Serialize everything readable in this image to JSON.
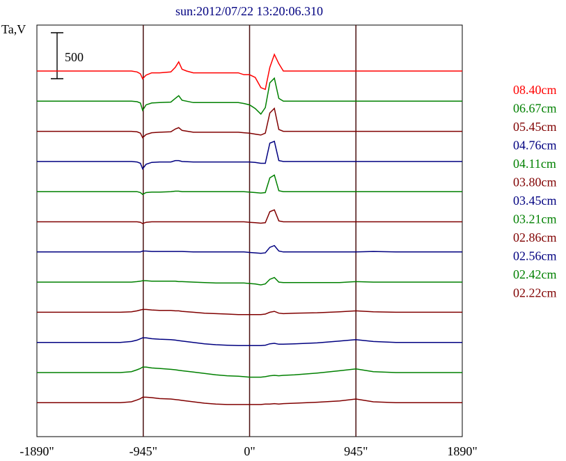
{
  "chart_data": {
    "type": "line",
    "title": "sun:2012/07/22 13:20:06.310",
    "ylabel": "Ta,V",
    "scale_bar_label": "500",
    "x_tick_labels": [
      "-1890\"",
      "-945\"",
      "0\"",
      "945\"",
      "1890\""
    ],
    "x_ticks": [
      -1890,
      -945,
      0,
      945,
      1890
    ],
    "xlim": [
      -1890,
      1890
    ],
    "vertical_lines": [
      -945,
      0,
      945
    ],
    "scale_bar_value": 500,
    "series": [
      {
        "name": "08.40cm",
        "color": "#ff0000",
        "offset": 0,
        "x": [
          -1890,
          -1150,
          -1050,
          -1000,
          -970,
          -950,
          -920,
          -870,
          -800,
          -700,
          -660,
          -630,
          -600,
          -560,
          -500,
          -400,
          -300,
          -200,
          -100,
          -50,
          0,
          50,
          100,
          140,
          180,
          220,
          260,
          300,
          400,
          600,
          800,
          945,
          1100,
          1300,
          1500,
          1700,
          1890
        ],
        "y": [
          0,
          0,
          0,
          -10,
          -30,
          -85,
          -45,
          -20,
          -20,
          -10,
          40,
          100,
          20,
          0,
          -20,
          -20,
          -20,
          -20,
          -20,
          -40,
          -40,
          -70,
          -180,
          -200,
          40,
          180,
          80,
          0,
          0,
          0,
          0,
          0,
          0,
          0,
          0,
          0,
          0
        ]
      },
      {
        "name": "06.67cm",
        "color": "#008000",
        "offset": 0,
        "x": [
          -1890,
          -1150,
          -1050,
          -1000,
          -970,
          -950,
          -920,
          -870,
          -800,
          -700,
          -660,
          -630,
          -600,
          -500,
          -400,
          -300,
          -200,
          -100,
          -50,
          0,
          50,
          100,
          140,
          180,
          220,
          260,
          300,
          400,
          600,
          800,
          945,
          1100,
          1300,
          1500,
          1700,
          1890
        ],
        "y": [
          0,
          0,
          0,
          -5,
          -20,
          -100,
          -40,
          -20,
          -15,
          -10,
          30,
          60,
          10,
          -15,
          -15,
          -15,
          -15,
          -15,
          -25,
          -40,
          -80,
          -140,
          -70,
          200,
          250,
          30,
          0,
          0,
          0,
          0,
          0,
          0,
          0,
          0,
          0,
          0
        ]
      },
      {
        "name": "05.45cm",
        "color": "#800000",
        "offset": 0,
        "x": [
          -1890,
          -1150,
          -1050,
          -1000,
          -970,
          -950,
          -920,
          -870,
          -800,
          -700,
          -660,
          -630,
          -600,
          -500,
          -400,
          -300,
          -200,
          -100,
          -50,
          0,
          50,
          100,
          140,
          180,
          220,
          260,
          300,
          400,
          600,
          800,
          945,
          1100,
          1300,
          1500,
          1700,
          1890
        ],
        "y": [
          0,
          0,
          0,
          -5,
          -20,
          -70,
          -35,
          -15,
          -10,
          -5,
          25,
          40,
          10,
          -10,
          -10,
          -10,
          -10,
          -10,
          -15,
          -20,
          -30,
          -40,
          -20,
          200,
          250,
          20,
          0,
          0,
          0,
          0,
          0,
          0,
          0,
          0,
          0,
          0
        ]
      },
      {
        "name": "04.76cm",
        "color": "#000080",
        "offset": 0,
        "x": [
          -1890,
          -1150,
          -1050,
          -1000,
          -970,
          -950,
          -920,
          -870,
          -800,
          -700,
          -660,
          -630,
          -600,
          -500,
          -400,
          -300,
          -200,
          -100,
          -50,
          0,
          50,
          100,
          140,
          180,
          220,
          260,
          300,
          400,
          600,
          800,
          945,
          1100,
          1300,
          1500,
          1700,
          1890
        ],
        "y": [
          0,
          0,
          0,
          -5,
          -20,
          -80,
          -30,
          -10,
          -5,
          -5,
          10,
          10,
          0,
          -5,
          -5,
          -5,
          -5,
          -5,
          -5,
          -5,
          -10,
          -20,
          -20,
          200,
          220,
          10,
          0,
          0,
          0,
          0,
          0,
          0,
          0,
          0,
          0,
          0
        ]
      },
      {
        "name": "04.11cm",
        "color": "#008000",
        "offset": 0,
        "x": [
          -1890,
          -1150,
          -1050,
          -1000,
          -970,
          -950,
          -920,
          -870,
          -800,
          -700,
          -660,
          -630,
          -600,
          -500,
          -400,
          -300,
          -200,
          -100,
          -50,
          0,
          50,
          100,
          140,
          180,
          220,
          260,
          300,
          400,
          600,
          800,
          945,
          1100,
          1300,
          1500,
          1700,
          1890
        ],
        "y": [
          0,
          0,
          0,
          0,
          -10,
          -30,
          -10,
          -5,
          -5,
          0,
          5,
          5,
          0,
          0,
          0,
          0,
          0,
          0,
          0,
          -5,
          -10,
          -15,
          -10,
          150,
          180,
          10,
          0,
          0,
          0,
          0,
          0,
          0,
          0,
          0,
          0,
          0
        ]
      },
      {
        "name": "03.80cm",
        "color": "#800000",
        "offset": 0,
        "x": [
          -1890,
          -1150,
          -1050,
          -1000,
          -970,
          -950,
          -920,
          -870,
          -800,
          -700,
          -660,
          -630,
          -600,
          -500,
          -400,
          -300,
          -200,
          -100,
          -50,
          0,
          50,
          100,
          140,
          180,
          220,
          260,
          300,
          400,
          600,
          800,
          945,
          1100,
          1300,
          1500,
          1700,
          1890
        ],
        "y": [
          0,
          0,
          0,
          0,
          -5,
          -20,
          -5,
          0,
          0,
          0,
          0,
          0,
          0,
          0,
          0,
          0,
          0,
          0,
          0,
          -5,
          -10,
          -15,
          -10,
          110,
          130,
          10,
          0,
          0,
          0,
          0,
          0,
          0,
          0,
          0,
          0,
          0
        ]
      },
      {
        "name": "03.45cm",
        "color": "#000080",
        "offset": 0,
        "x": [
          -1890,
          -1150,
          -1050,
          -1000,
          -970,
          -950,
          -920,
          -870,
          -800,
          -700,
          -660,
          -630,
          -600,
          -500,
          -400,
          -300,
          -200,
          -100,
          -50,
          0,
          50,
          100,
          140,
          180,
          220,
          260,
          300,
          400,
          600,
          800,
          945,
          1100,
          1300,
          1500,
          1700,
          1890
        ],
        "y": [
          0,
          0,
          0,
          0,
          0,
          10,
          10,
          5,
          5,
          5,
          5,
          5,
          5,
          0,
          0,
          0,
          0,
          0,
          0,
          -5,
          -10,
          -15,
          -10,
          50,
          70,
          10,
          0,
          0,
          0,
          0,
          0,
          5,
          0,
          0,
          0,
          0
        ]
      },
      {
        "name": "03.21cm",
        "color": "#008000",
        "offset": 0,
        "x": [
          -1890,
          -1150,
          -1050,
          -1000,
          -970,
          -950,
          -920,
          -870,
          -800,
          -700,
          -660,
          -630,
          -600,
          -500,
          -400,
          -300,
          -200,
          -100,
          -50,
          0,
          50,
          100,
          140,
          180,
          220,
          260,
          300,
          400,
          600,
          800,
          945,
          1100,
          1300,
          1500,
          1700,
          1890
        ],
        "y": [
          0,
          0,
          0,
          5,
          10,
          15,
          15,
          10,
          10,
          10,
          10,
          5,
          5,
          0,
          -5,
          -10,
          -10,
          -10,
          -10,
          -15,
          -20,
          -30,
          -20,
          30,
          50,
          0,
          -5,
          -5,
          -5,
          -5,
          5,
          0,
          0,
          0,
          0,
          0
        ]
      },
      {
        "name": "02.86cm",
        "color": "#800000",
        "offset": 0,
        "x": [
          -1890,
          -1150,
          -1050,
          -1000,
          -970,
          -950,
          -920,
          -870,
          -800,
          -700,
          -660,
          -630,
          -600,
          -500,
          -400,
          -300,
          -200,
          -100,
          -50,
          0,
          50,
          100,
          140,
          180,
          220,
          260,
          300,
          400,
          600,
          800,
          945,
          1100,
          1300,
          1500,
          1700,
          1890
        ],
        "y": [
          0,
          0,
          5,
          15,
          25,
          30,
          30,
          25,
          20,
          20,
          15,
          15,
          10,
          0,
          -10,
          -15,
          -20,
          -25,
          -25,
          -25,
          -25,
          -25,
          -20,
          0,
          10,
          -10,
          -15,
          -10,
          -5,
          5,
          15,
          5,
          0,
          0,
          0,
          0
        ]
      },
      {
        "name": "02.56cm",
        "color": "#000080",
        "offset": 0,
        "x": [
          -1890,
          -1150,
          -1050,
          -1000,
          -970,
          -950,
          -920,
          -870,
          -800,
          -700,
          -660,
          -630,
          -600,
          -500,
          -400,
          -300,
          -200,
          -100,
          -50,
          0,
          50,
          100,
          140,
          180,
          220,
          260,
          300,
          400,
          600,
          800,
          945,
          1100,
          1300,
          1500,
          1700,
          1890
        ],
        "y": [
          0,
          0,
          10,
          25,
          40,
          50,
          50,
          40,
          35,
          30,
          25,
          20,
          15,
          0,
          -15,
          -25,
          -30,
          -35,
          -35,
          -35,
          -35,
          -35,
          -30,
          -15,
          -10,
          -20,
          -20,
          -15,
          -5,
          15,
          30,
          10,
          0,
          0,
          0,
          0
        ]
      },
      {
        "name": "02.42cm",
        "color": "#008000",
        "offset": 0,
        "x": [
          -1890,
          -1150,
          -1050,
          -1000,
          -970,
          -950,
          -920,
          -870,
          -800,
          -700,
          -660,
          -630,
          -600,
          -500,
          -400,
          -300,
          -200,
          -100,
          -50,
          0,
          50,
          100,
          140,
          180,
          220,
          260,
          300,
          400,
          600,
          800,
          945,
          1100,
          1300,
          1500,
          1700,
          1890
        ],
        "y": [
          0,
          0,
          10,
          30,
          45,
          60,
          60,
          50,
          45,
          35,
          30,
          25,
          20,
          5,
          -10,
          -25,
          -35,
          -40,
          -45,
          -50,
          -50,
          -50,
          -45,
          -35,
          -30,
          -35,
          -30,
          -25,
          -5,
          20,
          40,
          10,
          0,
          0,
          0,
          0
        ]
      },
      {
        "name": "02.22cm",
        "color": "#800000",
        "offset": 0,
        "x": [
          -1890,
          -1150,
          -1050,
          -1000,
          -970,
          -950,
          -920,
          -870,
          -800,
          -700,
          -660,
          -630,
          -600,
          -500,
          -400,
          -300,
          -200,
          -100,
          -50,
          0,
          50,
          100,
          140,
          180,
          220,
          260,
          300,
          400,
          600,
          800,
          945,
          1100,
          1300,
          1500,
          1700,
          1890
        ],
        "y": [
          0,
          0,
          10,
          30,
          45,
          60,
          60,
          55,
          45,
          40,
          35,
          30,
          25,
          10,
          -5,
          -15,
          -20,
          -20,
          -20,
          -20,
          -20,
          -20,
          -15,
          -15,
          -10,
          -15,
          -10,
          -5,
          5,
          20,
          40,
          10,
          0,
          0,
          0,
          0
        ]
      }
    ],
    "legend_position": "right",
    "grid": false
  }
}
